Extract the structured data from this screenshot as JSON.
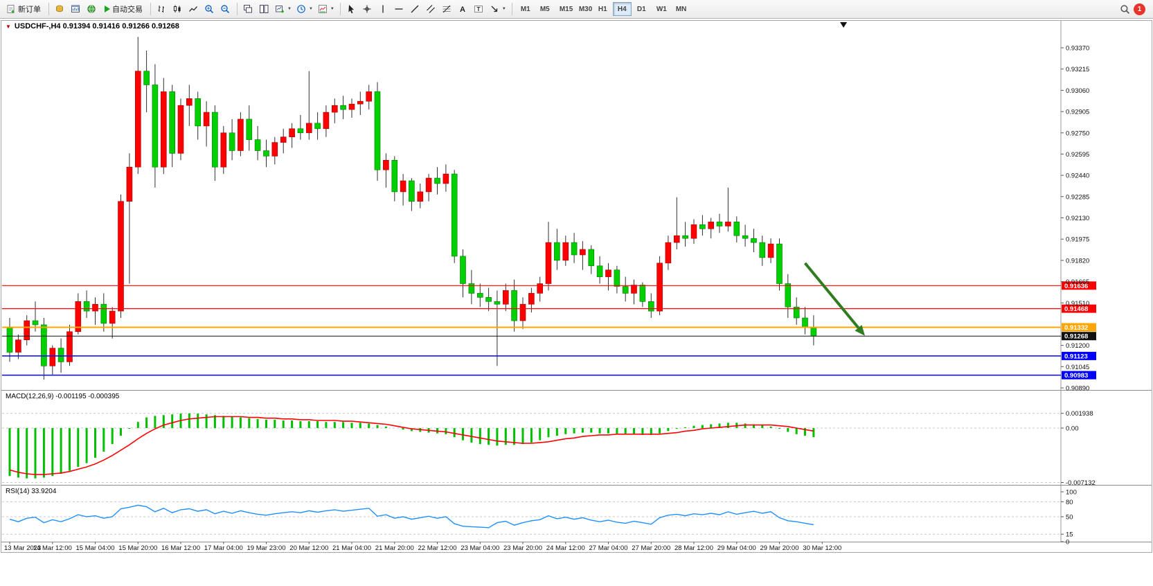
{
  "toolbar": {
    "new_order_label": "新订单",
    "auto_trading_label": "自动交易",
    "timeframes": [
      "M1",
      "M5",
      "M15",
      "M30",
      "H1",
      "H4",
      "D1",
      "W1",
      "MN"
    ],
    "active_timeframe": "H4",
    "notification_count": "1",
    "icons": [
      "new-order",
      "coins",
      "chart-window",
      "globe",
      "auto-trading-play",
      "bar-chart",
      "candlestick-chart",
      "line-chart",
      "zoom-in",
      "zoom-out",
      "cascade-windows",
      "tile-windows",
      "new-chart",
      "clock",
      "indicators",
      "cursor",
      "crosshair",
      "vertical-line",
      "horizontal-line",
      "trendline",
      "channel",
      "fibonacci",
      "text",
      "label",
      "arrows",
      "search",
      "notification"
    ]
  },
  "chart": {
    "title": "USDCHF-,H4 0.91394 0.91416 0.91266 0.91268",
    "symbol": "USDCHF-",
    "period": "H4",
    "ohlc": {
      "open": "0.91394",
      "high": "0.91416",
      "low": "0.91266",
      "close": "0.91268"
    }
  },
  "indicators": {
    "macd_title": "MACD(12,26,9) -0.001195 -0.000395",
    "rsi_title": "RSI(14) 33.9204"
  },
  "chart_data": {
    "type": "candlestick",
    "symbol": "USDCHF-",
    "timeframe": "H4",
    "colors": {
      "bull": "#ff0000",
      "bear": "#00d000",
      "wick": "#303030",
      "macd_hist": "#00c000",
      "macd_signal": "#ff0000",
      "rsi": "#1e90ff",
      "arrow": "#2f7d1f"
    },
    "y_axis": {
      "min": 0.9089,
      "max": 0.9337,
      "ticks": [
        "0.93370",
        "0.93215",
        "0.93060",
        "0.92905",
        "0.92750",
        "0.92595",
        "0.92440",
        "0.92285",
        "0.92130",
        "0.91975",
        "0.91820",
        "0.91665",
        "0.91510",
        "0.91200",
        "0.91045",
        "0.90890"
      ]
    },
    "x_labels": [
      "13 Mar 2023",
      "14 Mar 12:00",
      "15 Mar 04:00",
      "15 Mar 20:00",
      "16 Mar 12:00",
      "17 Mar 04:00",
      "19 Mar 23:00",
      "20 Mar 12:00",
      "21 Mar 04:00",
      "21 Mar 20:00",
      "22 Mar 12:00",
      "23 Mar 04:00",
      "23 Mar 20:00",
      "24 Mar 12:00",
      "27 Mar 04:00",
      "27 Mar 20:00",
      "28 Mar 12:00",
      "29 Mar 04:00",
      "29 Mar 20:00",
      "30 Mar 12:00"
    ],
    "candles": [
      [
        0.9133,
        0.914,
        0.9108,
        0.9115
      ],
      [
        0.9115,
        0.9128,
        0.911,
        0.9124
      ],
      [
        0.9124,
        0.9142,
        0.912,
        0.9138
      ],
      [
        0.9138,
        0.9152,
        0.913,
        0.9135
      ],
      [
        0.9135,
        0.914,
        0.9095,
        0.9105
      ],
      [
        0.9105,
        0.912,
        0.9098,
        0.9118
      ],
      [
        0.9118,
        0.9125,
        0.91,
        0.9108
      ],
      [
        0.9108,
        0.9135,
        0.9105,
        0.913
      ],
      [
        0.913,
        0.9158,
        0.9128,
        0.9152
      ],
      [
        0.9152,
        0.916,
        0.914,
        0.9145
      ],
      [
        0.9145,
        0.9155,
        0.9135,
        0.915
      ],
      [
        0.915,
        0.9158,
        0.913,
        0.9136
      ],
      [
        0.9136,
        0.9148,
        0.9125,
        0.9145
      ],
      [
        0.9145,
        0.923,
        0.914,
        0.9225
      ],
      [
        0.9225,
        0.926,
        0.9165,
        0.925
      ],
      [
        0.925,
        0.9345,
        0.9245,
        0.932
      ],
      [
        0.932,
        0.9335,
        0.929,
        0.931
      ],
      [
        0.931,
        0.9325,
        0.9235,
        0.925
      ],
      [
        0.925,
        0.9315,
        0.9245,
        0.9305
      ],
      [
        0.9305,
        0.931,
        0.925,
        0.926
      ],
      [
        0.926,
        0.93,
        0.9255,
        0.9295
      ],
      [
        0.9295,
        0.931,
        0.928,
        0.93
      ],
      [
        0.93,
        0.9305,
        0.927,
        0.928
      ],
      [
        0.928,
        0.9298,
        0.9265,
        0.929
      ],
      [
        0.929,
        0.9295,
        0.924,
        0.925
      ],
      [
        0.925,
        0.928,
        0.9245,
        0.9275
      ],
      [
        0.9275,
        0.9285,
        0.9255,
        0.9262
      ],
      [
        0.9262,
        0.929,
        0.9258,
        0.9285
      ],
      [
        0.9285,
        0.9295,
        0.9262,
        0.927
      ],
      [
        0.927,
        0.928,
        0.9255,
        0.9262
      ],
      [
        0.9262,
        0.927,
        0.925,
        0.9258
      ],
      [
        0.9258,
        0.9272,
        0.9252,
        0.9268
      ],
      [
        0.9268,
        0.9278,
        0.926,
        0.9272
      ],
      [
        0.9272,
        0.9282,
        0.9264,
        0.9278
      ],
      [
        0.9278,
        0.9288,
        0.927,
        0.9275
      ],
      [
        0.9275,
        0.932,
        0.927,
        0.9282
      ],
      [
        0.9282,
        0.929,
        0.927,
        0.9278
      ],
      [
        0.9278,
        0.9295,
        0.9272,
        0.929
      ],
      [
        0.929,
        0.93,
        0.9282,
        0.9295
      ],
      [
        0.9295,
        0.9302,
        0.9285,
        0.9292
      ],
      [
        0.9292,
        0.93,
        0.9286,
        0.9296
      ],
      [
        0.9296,
        0.9305,
        0.9288,
        0.9298
      ],
      [
        0.9298,
        0.931,
        0.9292,
        0.9305
      ],
      [
        0.9305,
        0.9312,
        0.924,
        0.9248
      ],
      [
        0.9248,
        0.926,
        0.9235,
        0.9255
      ],
      [
        0.9255,
        0.9258,
        0.9225,
        0.9232
      ],
      [
        0.9232,
        0.9245,
        0.9222,
        0.924
      ],
      [
        0.924,
        0.9242,
        0.9218,
        0.9225
      ],
      [
        0.9225,
        0.9238,
        0.922,
        0.9232
      ],
      [
        0.9232,
        0.9245,
        0.9225,
        0.9242
      ],
      [
        0.9242,
        0.925,
        0.923,
        0.9238
      ],
      [
        0.9238,
        0.9252,
        0.9232,
        0.9245
      ],
      [
        0.9245,
        0.9248,
        0.918,
        0.9185
      ],
      [
        0.9185,
        0.919,
        0.9155,
        0.9165
      ],
      [
        0.9165,
        0.9175,
        0.915,
        0.9158
      ],
      [
        0.9158,
        0.9165,
        0.9148,
        0.9155
      ],
      [
        0.9155,
        0.9162,
        0.9145,
        0.9152
      ],
      [
        0.9152,
        0.916,
        0.9105,
        0.915
      ],
      [
        0.915,
        0.9165,
        0.9145,
        0.916
      ],
      [
        0.916,
        0.9168,
        0.913,
        0.9138
      ],
      [
        0.9138,
        0.9155,
        0.9132,
        0.915
      ],
      [
        0.915,
        0.9162,
        0.9144,
        0.9158
      ],
      [
        0.9158,
        0.917,
        0.9152,
        0.9165
      ],
      [
        0.9165,
        0.921,
        0.916,
        0.9195
      ],
      [
        0.9195,
        0.9205,
        0.9175,
        0.9182
      ],
      [
        0.9182,
        0.92,
        0.9178,
        0.9195
      ],
      [
        0.9195,
        0.9202,
        0.918,
        0.9186
      ],
      [
        0.9186,
        0.9196,
        0.9175,
        0.919
      ],
      [
        0.919,
        0.9193,
        0.9172,
        0.9178
      ],
      [
        0.9178,
        0.9185,
        0.9165,
        0.917
      ],
      [
        0.917,
        0.918,
        0.916,
        0.9175
      ],
      [
        0.9175,
        0.9178,
        0.9158,
        0.9163
      ],
      [
        0.9163,
        0.917,
        0.9152,
        0.9158
      ],
      [
        0.9158,
        0.9168,
        0.915,
        0.9164
      ],
      [
        0.9164,
        0.9166,
        0.9148,
        0.9152
      ],
      [
        0.9152,
        0.9158,
        0.914,
        0.9145
      ],
      [
        0.9145,
        0.9185,
        0.9142,
        0.918
      ],
      [
        0.918,
        0.92,
        0.9175,
        0.9195
      ],
      [
        0.9195,
        0.9228,
        0.919,
        0.92
      ],
      [
        0.92,
        0.921,
        0.9192,
        0.9198
      ],
      [
        0.9198,
        0.9212,
        0.9194,
        0.9208
      ],
      [
        0.9208,
        0.9215,
        0.92,
        0.9205
      ],
      [
        0.9205,
        0.9213,
        0.9198,
        0.921
      ],
      [
        0.921,
        0.9216,
        0.9202,
        0.9207
      ],
      [
        0.9207,
        0.9235,
        0.9203,
        0.921
      ],
      [
        0.921,
        0.9214,
        0.9195,
        0.92
      ],
      [
        0.92,
        0.9208,
        0.9192,
        0.9198
      ],
      [
        0.9198,
        0.9205,
        0.9188,
        0.9195
      ],
      [
        0.9195,
        0.92,
        0.9178,
        0.9184
      ],
      [
        0.9184,
        0.9198,
        0.918,
        0.9194
      ],
      [
        0.9194,
        0.9198,
        0.916,
        0.9165
      ],
      [
        0.9165,
        0.9172,
        0.914,
        0.9148
      ],
      [
        0.9148,
        0.9155,
        0.9135,
        0.914
      ],
      [
        0.914,
        0.9148,
        0.9128,
        0.9133
      ],
      [
        0.9133,
        0.9142,
        0.912,
        0.91268
      ]
    ],
    "hlines": [
      {
        "price": 0.91636,
        "label": "0.91636",
        "color": "#ff0000",
        "width": 1.2
      },
      {
        "price": 0.91468,
        "label": "0.91468",
        "color": "#ff0000",
        "width": 1.2
      },
      {
        "price": 0.91332,
        "label": "0.91332",
        "color": "#ffa500",
        "width": 2
      },
      {
        "price": 0.91268,
        "label": "0.91268",
        "color": "#111111",
        "width": 1
      },
      {
        "price": 0.91123,
        "label": "0.91123",
        "color": "#0000ff",
        "width": 1.5
      },
      {
        "price": 0.90983,
        "label": "0.90983",
        "color": "#0000ff",
        "width": 1.5
      }
    ],
    "current_price": 0.91268,
    "macd": {
      "label": "MACD(12,26,9)",
      "value_main": "-0.001195",
      "value_signal": "-0.000395",
      "levels": [
        {
          "value": 0.001938,
          "label": "0.001938"
        },
        {
          "value": 0,
          "label": "0.00"
        },
        {
          "value": -0.007132,
          "label": "-0.007132"
        }
      ],
      "histogram": [
        -0.0063,
        -0.0065,
        -0.0066,
        -0.0066,
        -0.0065,
        -0.0063,
        -0.006,
        -0.0056,
        -0.0051,
        -0.0046,
        -0.0039,
        -0.0031,
        -0.0021,
        -0.001,
        -0.0001,
        0.0008,
        0.0014,
        0.0016,
        0.0017,
        0.0018,
        0.0019,
        0.00194,
        0.0019,
        0.0018,
        0.0017,
        0.0016,
        0.0015,
        0.0014,
        0.0013,
        0.0012,
        0.0011,
        0.0011,
        0.001,
        0.001,
        0.0009,
        0.0009,
        0.0009,
        0.0008,
        0.0008,
        0.0008,
        0.0007,
        0.0007,
        0.0006,
        0.0004,
        0.0002,
        0.0,
        -0.0002,
        -0.0004,
        -0.0005,
        -0.0006,
        -0.0007,
        -0.0008,
        -0.0012,
        -0.0016,
        -0.0019,
        -0.0021,
        -0.0022,
        -0.0023,
        -0.0022,
        -0.0022,
        -0.0021,
        -0.0019,
        -0.0016,
        -0.0012,
        -0.001,
        -0.0008,
        -0.0007,
        -0.0006,
        -0.0006,
        -0.0007,
        -0.0007,
        -0.0008,
        -0.0008,
        -0.0008,
        -0.0009,
        -0.0009,
        -0.0007,
        -0.0004,
        -0.0001,
        0.0001,
        0.0003,
        0.0004,
        0.0005,
        0.0006,
        0.0007,
        0.0007,
        0.0006,
        0.0005,
        0.0004,
        0.0002,
        -0.0001,
        -0.0005,
        -0.0008,
        -0.001,
        -0.001195
      ],
      "signal": [
        -0.0055,
        -0.0058,
        -0.006,
        -0.0061,
        -0.0061,
        -0.006,
        -0.0059,
        -0.0057,
        -0.0054,
        -0.0051,
        -0.0047,
        -0.0042,
        -0.0036,
        -0.0029,
        -0.0022,
        -0.0014,
        -0.0007,
        -0.0001,
        0.0004,
        0.0007,
        0.001,
        0.0012,
        0.0013,
        0.0014,
        0.0015,
        0.0015,
        0.0015,
        0.0015,
        0.0014,
        0.0014,
        0.0013,
        0.0013,
        0.0012,
        0.0012,
        0.0011,
        0.0011,
        0.001,
        0.001,
        0.001,
        0.0009,
        0.0009,
        0.0008,
        0.0007,
        0.0006,
        0.0005,
        0.0003,
        0.0001,
        -0.0001,
        -0.0002,
        -0.0003,
        -0.0004,
        -0.0005,
        -0.0007,
        -0.0009,
        -0.0011,
        -0.0013,
        -0.0015,
        -0.0017,
        -0.0018,
        -0.0019,
        -0.002,
        -0.002,
        -0.0019,
        -0.0018,
        -0.0016,
        -0.0014,
        -0.0013,
        -0.0011,
        -0.001,
        -0.0009,
        -0.0009,
        -0.0008,
        -0.0008,
        -0.0008,
        -0.0008,
        -0.0008,
        -0.0008,
        -0.0007,
        -0.0006,
        -0.0004,
        -0.0003,
        -0.0001,
        0.0,
        0.0001,
        0.0002,
        0.0003,
        0.0004,
        0.0004,
        0.0004,
        0.0004,
        0.0003,
        0.0002,
        0.0,
        -0.0002,
        -0.000395
      ]
    },
    "rsi": {
      "label": "RSI(14)",
      "value": "33.9204",
      "levels": [
        {
          "value": 100,
          "label": "100",
          "dashed": false
        },
        {
          "value": 80,
          "label": "80",
          "dashed": true
        },
        {
          "value": 50,
          "label": "50",
          "dashed": true
        },
        {
          "value": 15,
          "label": "15",
          "dashed": true
        },
        {
          "value": 0,
          "label": "0",
          "dashed": false
        }
      ],
      "values": [
        45,
        40,
        47,
        49,
        38,
        44,
        40,
        46,
        54,
        50,
        52,
        47,
        50,
        66,
        69,
        73,
        70,
        60,
        67,
        58,
        64,
        66,
        61,
        64,
        56,
        61,
        57,
        62,
        58,
        55,
        53,
        56,
        58,
        60,
        58,
        62,
        59,
        62,
        64,
        61,
        63,
        65,
        67,
        51,
        54,
        47,
        50,
        45,
        48,
        51,
        47,
        50,
        36,
        31,
        30,
        29,
        28,
        38,
        41,
        33,
        38,
        42,
        44,
        52,
        46,
        49,
        45,
        48,
        43,
        40,
        43,
        39,
        37,
        41,
        38,
        35,
        48,
        53,
        55,
        52,
        56,
        54,
        57,
        54,
        60,
        55,
        58,
        61,
        57,
        60,
        48,
        42,
        40,
        37,
        34
      ]
    },
    "annotations": {
      "arrow": {
        "from": {
          "bar": 93,
          "price": 0.918
        },
        "to": {
          "bar": 100,
          "price": 0.9127
        },
        "color": "#2f7d1f"
      },
      "top_marker": {
        "bar": 97.5
      }
    }
  }
}
